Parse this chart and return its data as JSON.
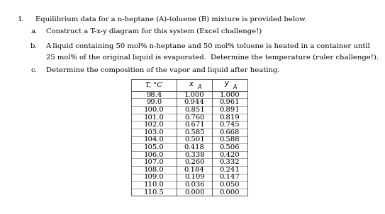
{
  "title_num": "1.",
  "title_text": "Equilibrium data for a n-heptane (A)-toluene (B) mixture is provided below.",
  "item_a_label": "a.",
  "item_a_text": "Construct a T-x-y diagram for this system (Excel challenge!)",
  "item_b_label": "b.",
  "item_b_text1": "A liquid containing 50 mol% n-heptane and 50 mol% toluene is heated in a container until",
  "item_b_text2": "25 mol% of the original liquid is evaporated.  Determine the temperature (ruler challenge!).",
  "item_c_label": "c.",
  "item_c_text": "Determine the composition of the vapor and liquid after heating.",
  "col_headers": [
    "T, °C",
    "xA",
    "yA"
  ],
  "table_data": [
    [
      98.4,
      1.0,
      1.0
    ],
    [
      99.0,
      0.944,
      0.961
    ],
    [
      100.0,
      0.851,
      0.891
    ],
    [
      101.0,
      0.76,
      0.819
    ],
    [
      102.0,
      0.671,
      0.745
    ],
    [
      103.0,
      0.585,
      0.668
    ],
    [
      104.0,
      0.501,
      0.588
    ],
    [
      105.0,
      0.418,
      0.506
    ],
    [
      106.0,
      0.338,
      0.42
    ],
    [
      107.0,
      0.26,
      0.332
    ],
    [
      108.0,
      0.184,
      0.241
    ],
    [
      109.0,
      0.109,
      0.147
    ],
    [
      110.0,
      0.036,
      0.05
    ],
    [
      110.5,
      0.0,
      0.0
    ]
  ],
  "bg_color": "#ffffff",
  "text_color": "#000000",
  "font_size": 7.2,
  "table_line_color": "#888888"
}
